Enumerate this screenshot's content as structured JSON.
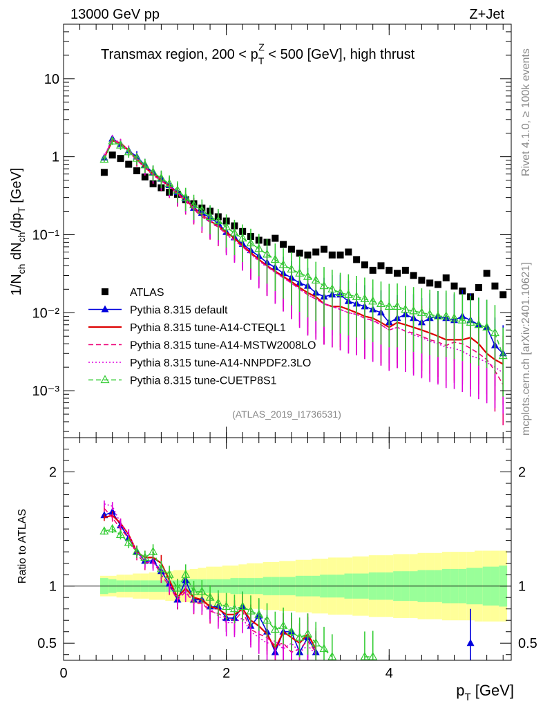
{
  "header": {
    "left": "13000 GeV pp",
    "right": "Z+Jet"
  },
  "side": {
    "rivet": "Rivet 4.1.0, ≥ 100k events",
    "mcplots": "mcplots.cern.ch [arXiv:2401.10621]"
  },
  "colors": {
    "atlas": "#000000",
    "default": "#0000dd",
    "cteql1": "#dd0000",
    "mstw": "#ee0077",
    "nnpdf": "#dd00dd",
    "cuetp8s1": "#33cc33",
    "band_outer": "#ffff99",
    "band_inner": "#99ff99"
  },
  "chart_data": [
    {
      "type": "scatter",
      "panel": "main",
      "title": "Transmax region, 200 < p_T^Z < 500 [GeV], high thrust",
      "ylabel": "1/N_ch dN_ch/dp_T [GeV]",
      "xlabel": "p_T [GeV]",
      "yscale": "log",
      "xlim": [
        0,
        5.5
      ],
      "ylim": [
        0.00025,
        50
      ],
      "x_ticks": [
        0,
        2,
        4
      ],
      "y_ticks": [
        {
          "value": 0.001,
          "label": "10⁻³"
        },
        {
          "value": 0.01,
          "label": "10⁻²"
        },
        {
          "value": 0.1,
          "label": "10⁻¹"
        },
        {
          "value": 1,
          "label": "1"
        },
        {
          "value": 10,
          "label": "10"
        }
      ],
      "watermark": "(ATLAS_2019_I1736531)",
      "x": [
        0.5,
        0.6,
        0.7,
        0.8,
        0.9,
        1.0,
        1.1,
        1.2,
        1.3,
        1.4,
        1.5,
        1.6,
        1.7,
        1.8,
        1.9,
        2.0,
        2.1,
        2.2,
        2.3,
        2.4,
        2.5,
        2.6,
        2.7,
        2.8,
        2.9,
        3.0,
        3.1,
        3.2,
        3.3,
        3.4,
        3.5,
        3.6,
        3.7,
        3.8,
        3.9,
        4.0,
        4.1,
        4.2,
        4.3,
        4.4,
        4.5,
        4.6,
        4.7,
        4.8,
        4.9,
        5.0,
        5.1,
        5.2,
        5.3,
        5.4
      ],
      "series": [
        {
          "name": "ATLAS",
          "key": "atlas",
          "marker": "square",
          "values": [
            0.63,
            1.05,
            0.95,
            0.8,
            0.66,
            0.55,
            0.45,
            0.4,
            0.35,
            0.33,
            0.28,
            0.25,
            0.22,
            0.2,
            0.17,
            0.15,
            0.13,
            0.11,
            0.095,
            0.085,
            0.08,
            0.09,
            0.075,
            0.065,
            0.058,
            0.055,
            0.06,
            0.065,
            0.055,
            0.055,
            0.06,
            0.048,
            0.041,
            0.035,
            0.04,
            0.035,
            0.032,
            0.035,
            0.03,
            0.026,
            0.024,
            0.023,
            0.028,
            0.022,
            0.019,
            0.016,
            0.021,
            0.032,
            0.022,
            0.017
          ]
        },
        {
          "name": "Pythia 8.315 default",
          "key": "default",
          "marker": "triangle-filled",
          "line": "solid",
          "values": [
            0.97,
            1.7,
            1.45,
            1.2,
            1.0,
            0.78,
            0.62,
            0.52,
            0.43,
            0.35,
            0.29,
            0.22,
            0.19,
            0.165,
            0.14,
            0.108,
            0.092,
            0.076,
            0.063,
            0.053,
            0.044,
            0.038,
            0.032,
            0.028,
            0.024,
            0.022,
            0.018,
            0.016,
            0.017,
            0.017,
            0.014,
            0.013,
            0.012,
            0.011,
            0.01,
            0.0075,
            0.0085,
            0.0095,
            0.0085,
            0.0075,
            0.0085,
            0.009,
            0.0085,
            0.008,
            0.009,
            0.008,
            0.007,
            0.0065,
            0.0038,
            0.003
          ]
        },
        {
          "name": "Pythia 8.315 tune-A14-CTEQL1",
          "key": "cteql1",
          "marker": "none",
          "line": "solid",
          "values": [
            0.97,
            1.6,
            1.5,
            1.2,
            0.93,
            0.73,
            0.6,
            0.5,
            0.42,
            0.34,
            0.28,
            0.22,
            0.18,
            0.15,
            0.13,
            0.108,
            0.09,
            0.072,
            0.059,
            0.048,
            0.04,
            0.034,
            0.029,
            0.025,
            0.021,
            0.018,
            0.016,
            0.013,
            0.012,
            0.012,
            0.011,
            0.01,
            0.009,
            0.0085,
            0.0075,
            0.0065,
            0.0075,
            0.007,
            0.0065,
            0.006,
            0.0055,
            0.005,
            0.0045,
            0.0045,
            0.0045,
            0.0048,
            0.004,
            0.003,
            0.0025,
            0.0022
          ]
        },
        {
          "name": "Pythia 8.315 tune-A14-MSTW2008LO",
          "key": "mstw",
          "marker": "none",
          "line": "dashed",
          "values": [
            0.98,
            1.65,
            1.45,
            1.15,
            0.91,
            0.72,
            0.58,
            0.49,
            0.41,
            0.33,
            0.27,
            0.21,
            0.17,
            0.145,
            0.125,
            0.102,
            0.085,
            0.07,
            0.057,
            0.047,
            0.039,
            0.033,
            0.028,
            0.024,
            0.02,
            0.017,
            0.015,
            0.013,
            0.012,
            0.011,
            0.01,
            0.0095,
            0.0085,
            0.008,
            0.007,
            0.006,
            0.0065,
            0.0058,
            0.0055,
            0.005,
            0.0045,
            0.0042,
            0.0038,
            0.0042,
            0.004,
            0.0035,
            0.003,
            0.0025,
            0.0018,
            0.0012
          ]
        },
        {
          "name": "Pythia 8.315 tune-A14-NNPDF2.3LO",
          "key": "nnpdf",
          "marker": "none",
          "line": "dotted",
          "values": [
            1.02,
            1.72,
            1.5,
            1.2,
            0.95,
            0.74,
            0.6,
            0.5,
            0.42,
            0.34,
            0.28,
            0.22,
            0.18,
            0.15,
            0.13,
            0.1,
            0.084,
            0.07,
            0.056,
            0.046,
            0.039,
            0.033,
            0.028,
            0.024,
            0.02,
            0.017,
            0.015,
            0.013,
            0.012,
            0.011,
            0.01,
            0.0095,
            0.0085,
            0.0078,
            0.007,
            0.006,
            0.0065,
            0.0058,
            0.0052,
            0.0048,
            0.0043,
            0.004,
            0.0036,
            0.0035,
            0.0032,
            0.0028,
            0.0026,
            0.0023,
            0.002,
            0.0017
          ]
        },
        {
          "name": "Pythia 8.315 tune-CUETP8S1",
          "key": "cuetp8s1",
          "marker": "triangle-open",
          "line": "dashed",
          "values": [
            0.92,
            1.58,
            1.4,
            1.15,
            0.95,
            0.78,
            0.63,
            0.53,
            0.45,
            0.37,
            0.3,
            0.24,
            0.205,
            0.17,
            0.15,
            0.125,
            0.105,
            0.09,
            0.078,
            0.066,
            0.056,
            0.048,
            0.041,
            0.036,
            0.032,
            0.029,
            0.026,
            0.022,
            0.02,
            0.018,
            0.017,
            0.016,
            0.015,
            0.014,
            0.013,
            0.012,
            0.012,
            0.011,
            0.0105,
            0.01,
            0.0095,
            0.009,
            0.009,
            0.0085,
            0.008,
            0.0075,
            0.007,
            0.0065,
            0.0055,
            0.0028
          ]
        }
      ]
    },
    {
      "type": "line",
      "panel": "ratio",
      "ylabel": "Ratio to ATLAS",
      "xlim": [
        0,
        5.5
      ],
      "ylim": [
        0.35,
        2.3
      ],
      "y_ticks": [
        0.5,
        1,
        2
      ],
      "reference": 1.0,
      "band_outer": [
        0.09,
        0.09,
        0.1,
        0.1,
        0.11,
        0.11,
        0.12,
        0.12,
        0.13,
        0.14,
        0.14,
        0.15,
        0.16,
        0.17,
        0.17,
        0.18,
        0.18,
        0.19,
        0.2,
        0.2,
        0.21,
        0.21,
        0.22,
        0.22,
        0.23,
        0.23,
        0.24,
        0.24,
        0.25,
        0.25,
        0.25,
        0.26,
        0.26,
        0.27,
        0.27,
        0.27,
        0.28,
        0.28,
        0.28,
        0.29,
        0.29,
        0.29,
        0.3,
        0.3,
        0.3,
        0.3,
        0.31,
        0.31,
        0.31,
        0.31
      ],
      "band_inner": [
        0.07,
        0.06,
        0.05,
        0.05,
        0.05,
        0.05,
        0.05,
        0.05,
        0.05,
        0.05,
        0.06,
        0.06,
        0.06,
        0.06,
        0.06,
        0.06,
        0.07,
        0.07,
        0.07,
        0.07,
        0.08,
        0.08,
        0.08,
        0.08,
        0.09,
        0.09,
        0.09,
        0.1,
        0.1,
        0.1,
        0.11,
        0.11,
        0.11,
        0.12,
        0.12,
        0.12,
        0.13,
        0.13,
        0.13,
        0.14,
        0.14,
        0.14,
        0.15,
        0.15,
        0.15,
        0.16,
        0.16,
        0.17,
        0.17,
        0.18
      ],
      "series": [
        {
          "key": "default",
          "name": "Pythia 8.315 default",
          "values": [
            1.62,
            1.65,
            1.53,
            1.42,
            1.3,
            1.22,
            1.22,
            1.13,
            1.02,
            0.88,
            1.05,
            0.88,
            0.88,
            0.82,
            0.82,
            0.72,
            0.72,
            0.82,
            0.65,
            0.74,
            0.6,
            0.42,
            0.6,
            0.6,
            0.42,
            0.55,
            0.42,
            null,
            null,
            null,
            null,
            null,
            null,
            null,
            null,
            null,
            null,
            null,
            null,
            null,
            null,
            null,
            null,
            null,
            null,
            0.5,
            null,
            null,
            null,
            null
          ]
        },
        {
          "key": "cteql1",
          "name": "Pythia 8.315 tune-A14-CTEQL1",
          "values": [
            1.6,
            1.62,
            1.55,
            1.45,
            1.3,
            1.25,
            1.25,
            1.2,
            1.05,
            0.9,
            0.98,
            0.9,
            0.88,
            0.82,
            0.8,
            0.75,
            0.75,
            0.8,
            0.7,
            0.65,
            0.58,
            0.45,
            0.6,
            0.55,
            0.5,
            0.58,
            0.45,
            null,
            null,
            null,
            null,
            null,
            null,
            null,
            null,
            null,
            null,
            null,
            null,
            null,
            null,
            null,
            null,
            null,
            null,
            null,
            null,
            null,
            null,
            null
          ]
        },
        {
          "key": "mstw",
          "name": "Pythia 8.315 tune-A14-MSTW2008LO",
          "values": [
            1.68,
            1.6,
            1.5,
            1.42,
            1.28,
            1.2,
            1.22,
            1.1,
            1.0,
            0.88,
            0.95,
            0.85,
            0.85,
            0.78,
            0.76,
            0.72,
            0.7,
            0.78,
            0.62,
            0.58,
            0.55,
            0.48,
            0.5,
            0.42,
            0.45,
            0.52,
            0.42,
            null,
            null,
            null,
            null,
            null,
            null,
            null,
            null,
            null,
            null,
            null,
            null,
            null,
            null,
            null,
            null,
            null,
            null,
            null,
            null,
            null,
            null,
            null
          ]
        },
        {
          "key": "nnpdf",
          "name": "Pythia 8.315 tune-A14-NNPDF2.3LO",
          "values": [
            1.72,
            1.7,
            1.55,
            1.45,
            1.3,
            1.22,
            1.2,
            1.15,
            1.02,
            0.9,
            0.96,
            0.86,
            0.86,
            0.8,
            0.74,
            0.68,
            0.68,
            0.72,
            0.6,
            0.55,
            0.5,
            0.52,
            0.45,
            0.5,
            0.42,
            0.48,
            0.4,
            null,
            null,
            null,
            null,
            null,
            null,
            null,
            null,
            null,
            null,
            null,
            null,
            null,
            null,
            null,
            null,
            null,
            null,
            null,
            null,
            null,
            null,
            null
          ]
        },
        {
          "key": "cuetp8s1",
          "name": "Pythia 8.315 tune-CUETP8S1",
          "values": [
            1.48,
            1.5,
            1.45,
            1.38,
            1.3,
            1.25,
            1.3,
            1.15,
            1.1,
            0.98,
            1.1,
            0.95,
            0.95,
            0.9,
            0.85,
            0.82,
            0.8,
            0.82,
            0.78,
            0.75,
            0.7,
            0.62,
            0.65,
            0.6,
            0.55,
            0.58,
            0.5,
            0.45,
            0.38,
            null,
            null,
            null,
            0.38,
            0.38,
            null,
            null,
            null,
            null,
            null,
            null,
            null,
            null,
            null,
            null,
            null,
            null,
            null,
            null,
            null,
            null
          ]
        }
      ]
    }
  ]
}
